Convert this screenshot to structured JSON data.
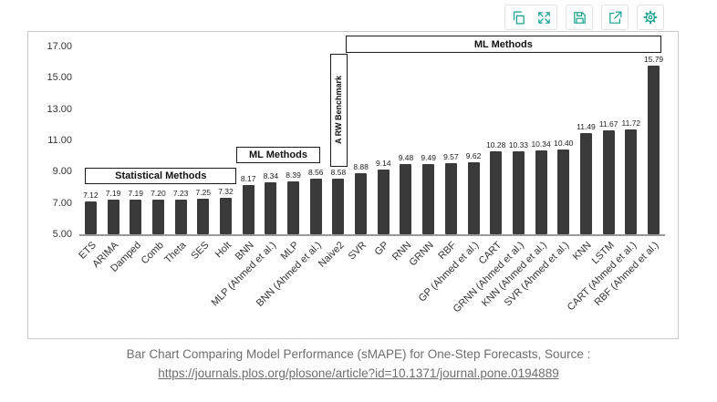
{
  "toolbar": {
    "icons": [
      "copy-icon",
      "fullscreen-icon",
      "save-icon",
      "share-icon",
      "settings-gear-icon"
    ]
  },
  "chart_data": {
    "type": "bar",
    "title": "",
    "xlabel": "",
    "ylabel": "",
    "ylim": [
      5,
      17
    ],
    "yticks": [
      "17.00",
      "15.00",
      "13.00",
      "11.00",
      "9.00",
      "7.00",
      "5.00"
    ],
    "bar_color": "#3a3a3a",
    "grid": false,
    "legend": "none",
    "categories": [
      "ETS",
      "ARIMA",
      "Damped",
      "Comb",
      "Theta",
      "SES",
      "Holt",
      "BNN",
      "MLP (Ahmed et al.)",
      "MLP",
      "BNN (Ahmed et al.)",
      "Naive2",
      "SVR",
      "GP",
      "RNN",
      "GRNN",
      "RBF",
      "GP (Ahmed et al.)",
      "CART",
      "GRNN (Ahmed et al.)",
      "KNN (Ahmed et al.)",
      "SVR (Ahmed et al.)",
      "KNN",
      "LSTM",
      "CART (Ahmed et al.)",
      "RBF (Ahmed et al.)"
    ],
    "values": [
      7.12,
      7.19,
      7.19,
      7.2,
      7.23,
      7.25,
      7.32,
      8.17,
      8.34,
      8.39,
      8.56,
      8.58,
      8.88,
      9.14,
      9.48,
      9.49,
      9.57,
      9.62,
      10.28,
      10.33,
      10.34,
      10.4,
      11.49,
      11.67,
      11.72,
      15.79
    ],
    "annotations": [
      {
        "label": "Statistical Methods"
      },
      {
        "label": "ML Methods"
      },
      {
        "label": "A RW Benchmark"
      },
      {
        "label": "ML Methods"
      }
    ]
  },
  "caption": {
    "text": "Bar Chart Comparing Model Performance (sMAPE) for One-Step Forecasts, Source :",
    "link": "https://journals.plos.org/plosone/article?id=10.1371/journal.pone.0194889"
  }
}
